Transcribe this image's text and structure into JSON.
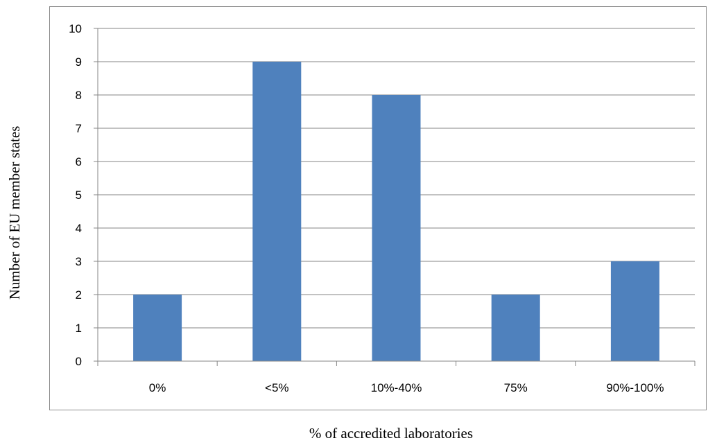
{
  "chart_data": {
    "type": "bar",
    "categories": [
      "0%",
      "<5%",
      "10%-40%",
      "75%",
      "90%-100%"
    ],
    "values": [
      2,
      9,
      8,
      2,
      3
    ],
    "title": "",
    "xlabel": "% of accredited laboratories",
    "ylabel": "Number of EU member states",
    "ylim": [
      0,
      10
    ],
    "yticks": [
      0,
      1,
      2,
      3,
      4,
      5,
      6,
      7,
      8,
      9,
      10
    ],
    "grid": true,
    "legend": "none",
    "bar_color": "#4f81bd",
    "grid_color": "#868686"
  }
}
